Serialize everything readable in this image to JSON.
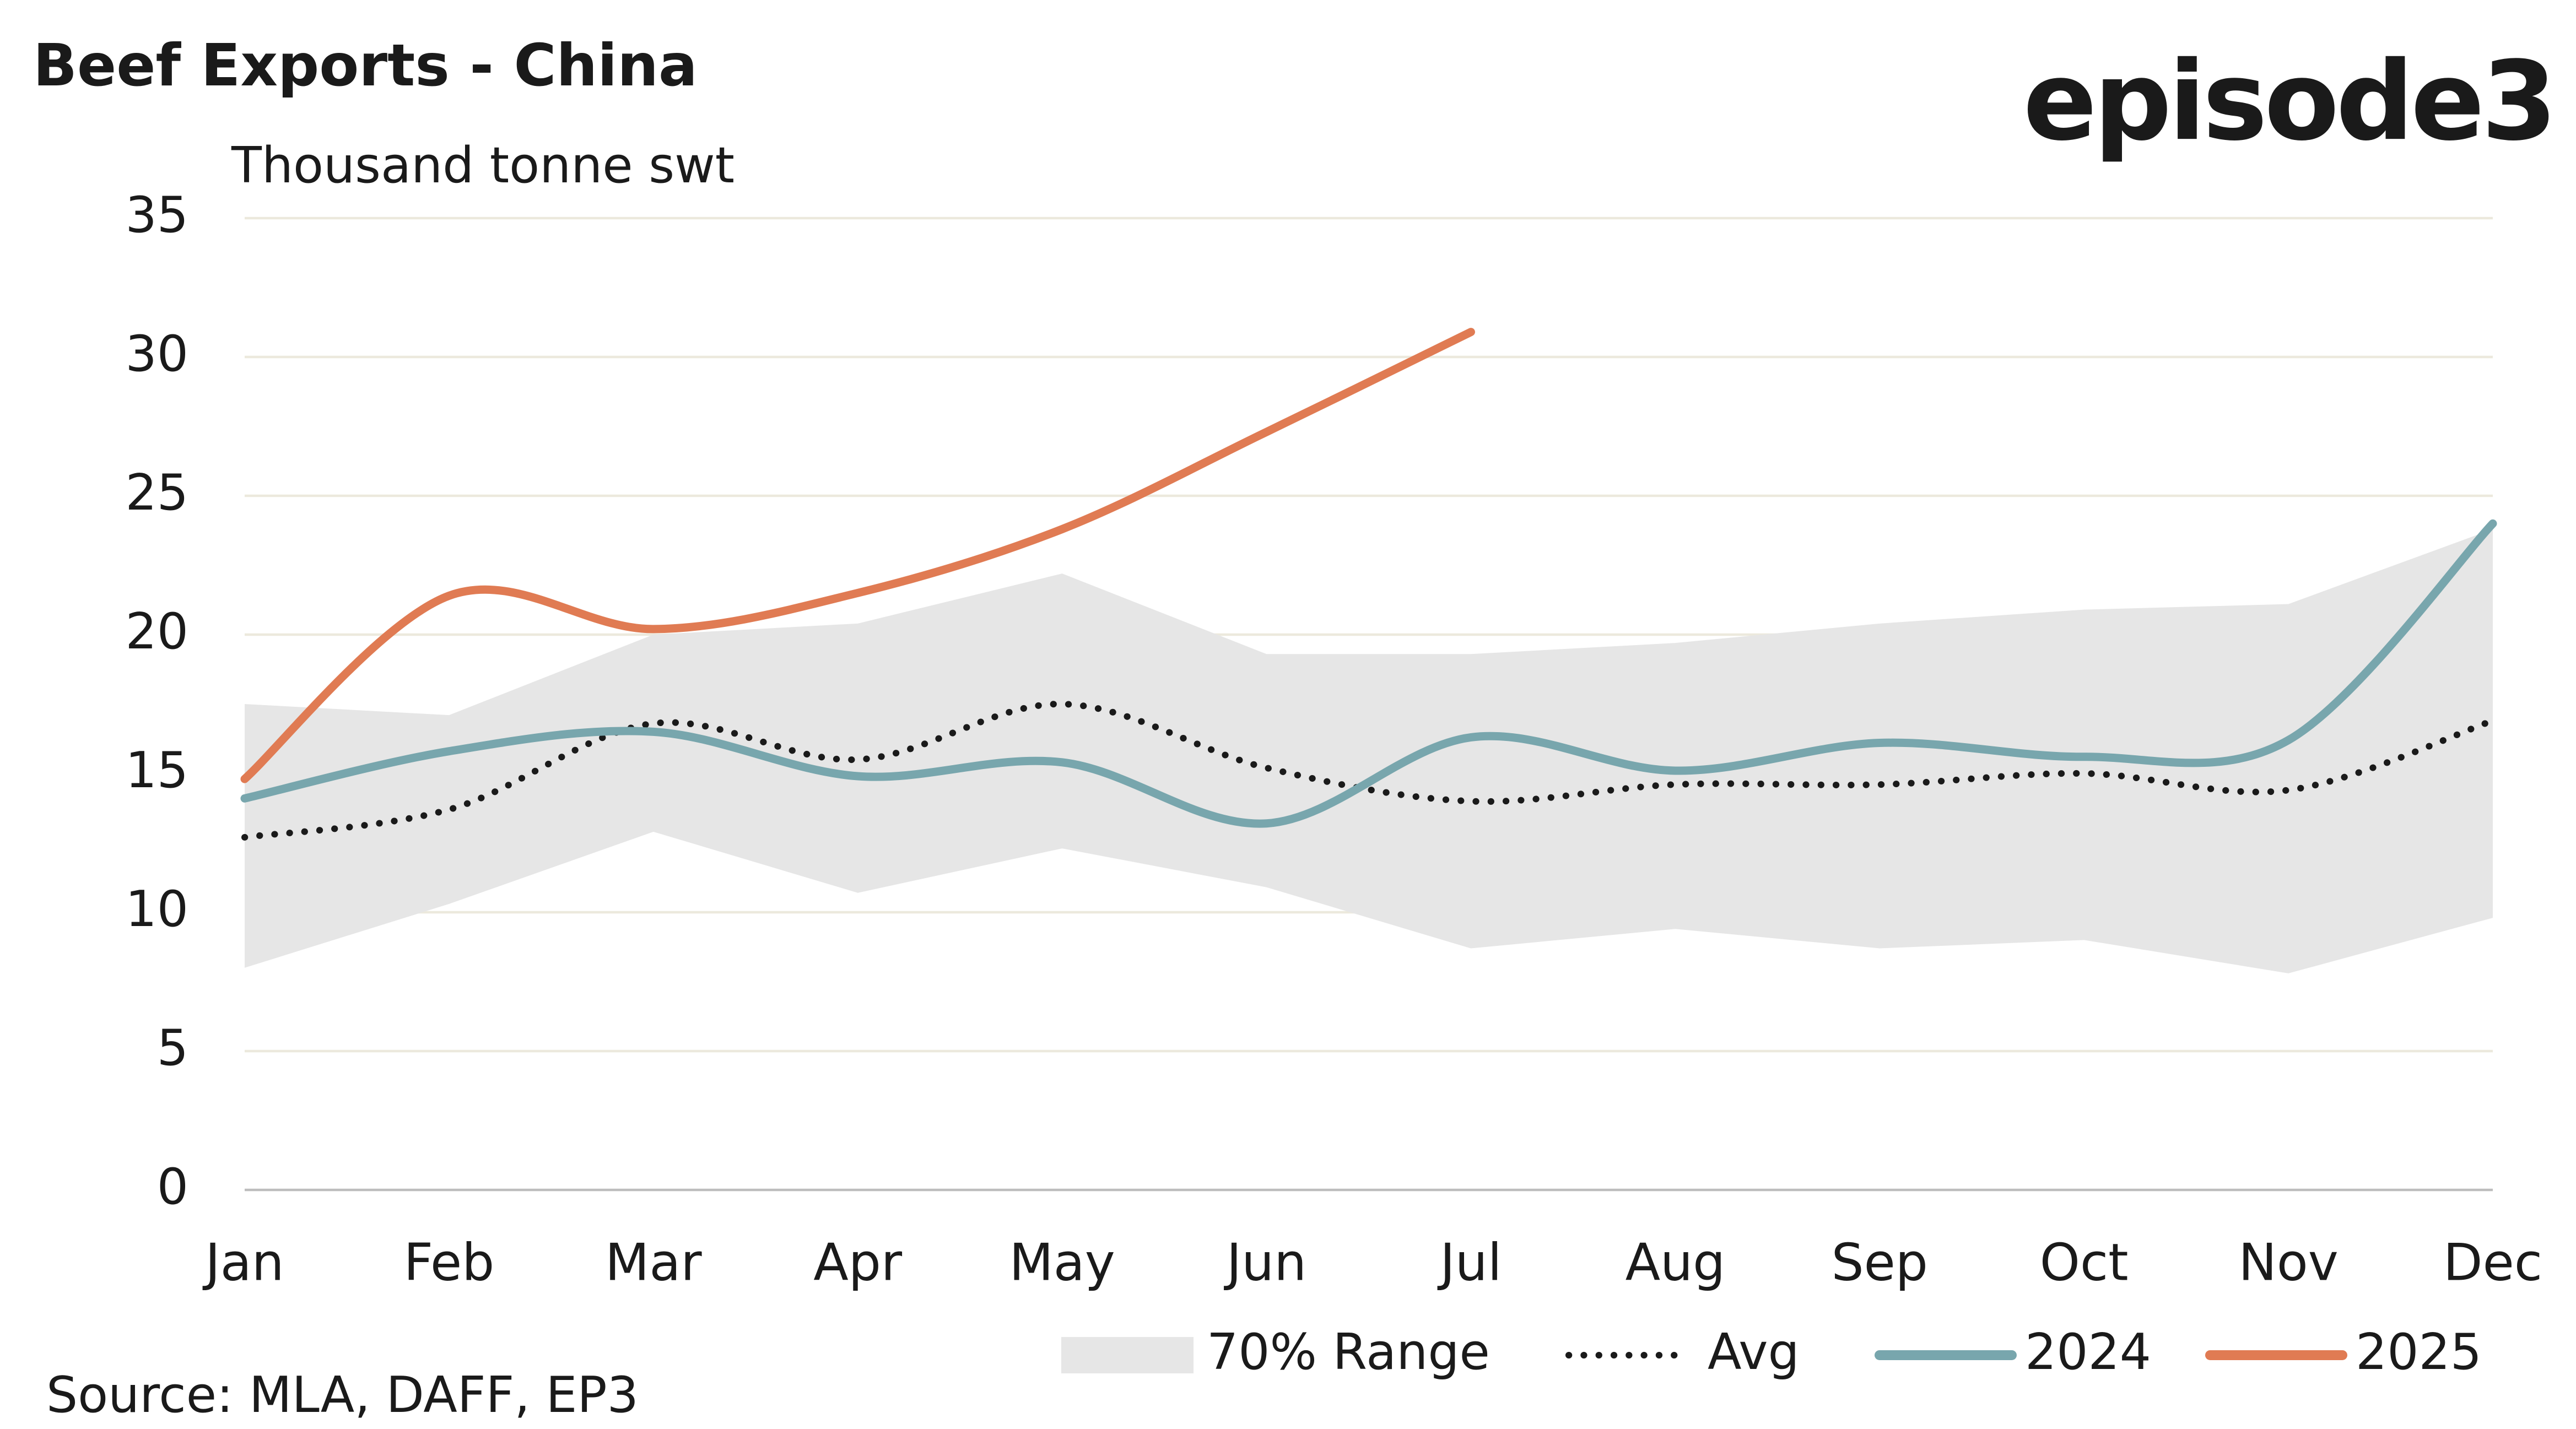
{
  "chart_data": {
    "type": "line",
    "title": "Beef Exports - China",
    "logo": "episode3",
    "y_label": "Thousand tonne swt",
    "source": "Source: MLA, DAFF, EP3",
    "categories": [
      "Jan",
      "Feb",
      "Mar",
      "Apr",
      "May",
      "Jun",
      "Jul",
      "Aug",
      "Sep",
      "Oct",
      "Nov",
      "Dec"
    ],
    "ylim": [
      0,
      35
    ],
    "yticks": [
      0,
      5,
      10,
      15,
      20,
      25,
      30,
      35
    ],
    "grid": true,
    "legend": "bottom",
    "series": [
      {
        "name": "70% Range",
        "kind": "range",
        "color": "#e6e6e6",
        "upper": [
          17.5,
          17.1,
          20.0,
          20.4,
          22.2,
          19.3,
          19.3,
          19.7,
          20.4,
          20.9,
          21.1,
          23.8
        ],
        "lower": [
          8.0,
          10.3,
          12.9,
          10.7,
          12.3,
          10.9,
          8.7,
          9.4,
          8.7,
          9.0,
          7.8,
          9.8
        ]
      },
      {
        "name": "Avg",
        "kind": "dotted",
        "color": "#1a1a1a",
        "values": [
          12.7,
          13.7,
          16.8,
          15.5,
          17.5,
          15.2,
          14.0,
          14.6,
          14.6,
          15.0,
          14.4,
          16.9
        ]
      },
      {
        "name": "2024",
        "color": "#78a6ad",
        "values": [
          14.1,
          15.8,
          16.5,
          14.9,
          15.4,
          13.2,
          16.3,
          15.1,
          16.1,
          15.6,
          16.2,
          24.0
        ]
      },
      {
        "name": "2025",
        "color": "#e07b53",
        "values": [
          14.8,
          21.4,
          20.2,
          21.5,
          23.8,
          27.3,
          30.9,
          null,
          null,
          null,
          null,
          null
        ]
      }
    ]
  }
}
